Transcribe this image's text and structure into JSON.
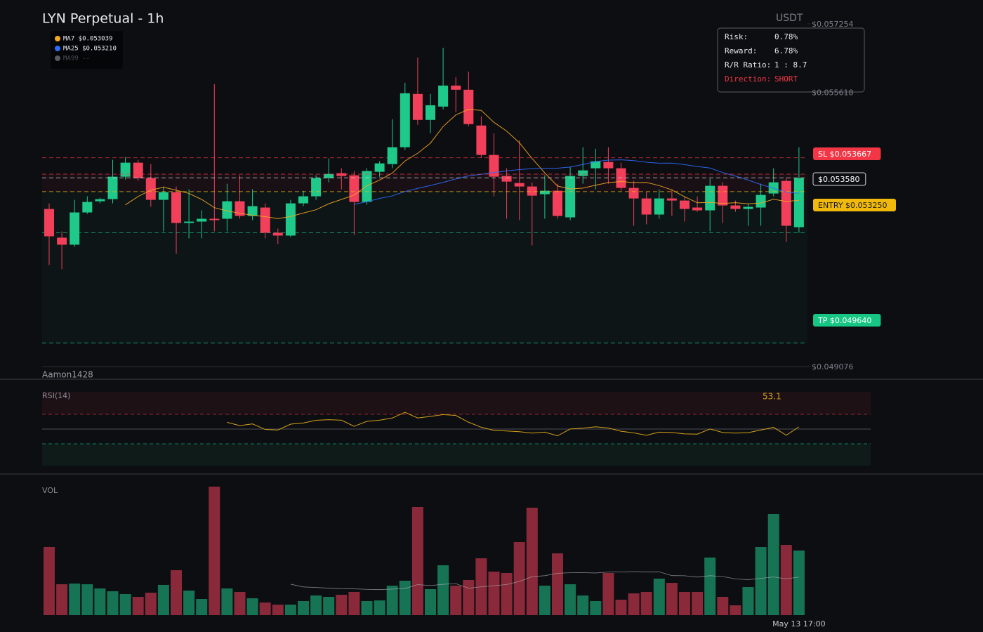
{
  "chart_data": {
    "type": "candlestick",
    "title": "LYN Perpetual - 1h",
    "currency": "USDT",
    "categories": [
      null,
      null,
      null,
      null,
      null,
      null,
      null,
      null,
      null,
      null,
      null,
      null,
      null,
      null,
      null,
      null,
      null,
      null,
      null,
      null,
      null,
      null,
      null,
      null,
      null,
      null,
      null,
      null,
      null,
      null,
      null,
      null,
      null,
      null,
      null,
      null,
      null,
      null,
      null,
      null,
      null,
      null,
      null,
      null,
      null,
      null,
      null,
      null,
      null,
      null,
      null,
      null,
      null,
      null,
      null,
      null,
      null,
      null,
      null,
      "May 13 17:00"
    ],
    "open": [
      0.052837,
      0.052152,
      0.051984,
      0.052754,
      0.053021,
      0.053072,
      0.053607,
      0.053942,
      0.053574,
      0.053055,
      0.053239,
      0.052503,
      0.052536,
      0.052603,
      0.052603,
      0.053021,
      0.05267,
      0.052871,
      0.052269,
      0.052202,
      0.052971,
      0.053139,
      0.053574,
      0.053691,
      0.05364,
      0.053005,
      0.053724,
      0.053908,
      0.05431,
      0.055581,
      0.054962,
      0.05528,
      0.055782,
      0.055682,
      0.054828,
      0.054126,
      0.053624,
      0.053456,
      0.053373,
      0.053189,
      0.053272,
      0.052637,
      0.053624,
      0.053808,
      0.053958,
      0.053808,
      0.053339,
      0.053088,
      0.052704,
      0.053088,
      0.053038,
      0.052871,
      0.052804,
      0.05339,
      0.052921,
      0.052837,
      0.052871,
      0.053206,
      0.053507,
      0.052402
    ],
    "high": [
      0.052971,
      0.052302,
      0.053055,
      0.053139,
      0.053105,
      0.054009,
      0.054075,
      0.054009,
      0.053908,
      0.053373,
      0.053373,
      0.053306,
      0.052804,
      0.055815,
      0.05344,
      0.05364,
      0.053306,
      0.052971,
      0.052369,
      0.053055,
      0.053272,
      0.05364,
      0.054042,
      0.053808,
      0.053741,
      0.053808,
      0.053975,
      0.054979,
      0.055849,
      0.056451,
      0.055581,
      0.056685,
      0.055983,
      0.056117,
      0.055046,
      0.054644,
      0.053808,
      0.054477,
      0.053473,
      0.05364,
      0.05344,
      0.053841,
      0.05431,
      0.054276,
      0.05431,
      0.053942,
      0.053507,
      0.053239,
      0.053306,
      0.053306,
      0.053139,
      0.053139,
      0.053557,
      0.053473,
      0.053038,
      0.052971,
      0.05344,
      0.053808,
      0.053574,
      0.05431
    ],
    "low": [
      0.051499,
      0.051399,
      0.051934,
      0.05272,
      0.052971,
      0.052971,
      0.05354,
      0.053507,
      0.052888,
      0.052302,
      0.051767,
      0.052135,
      0.052135,
      0.052302,
      0.052302,
      0.052603,
      0.05257,
      0.052135,
      0.052001,
      0.052168,
      0.052904,
      0.053055,
      0.053473,
      0.053306,
      0.052218,
      0.052938,
      0.053607,
      0.053808,
      0.054243,
      0.054845,
      0.054644,
      0.055213,
      0.055146,
      0.054812,
      0.054059,
      0.053139,
      0.052603,
      0.05257,
      0.051967,
      0.052603,
      0.052603,
      0.05257,
      0.05344,
      0.053306,
      0.05344,
      0.053272,
      0.052436,
      0.052469,
      0.052603,
      0.05267,
      0.052536,
      0.05277,
      0.052302,
      0.052503,
      0.05277,
      0.052436,
      0.052436,
      0.053139,
      0.052051,
      0.052269
    ],
    "close": [
      0.052185,
      0.051984,
      0.052754,
      0.053005,
      0.053072,
      0.053607,
      0.053942,
      0.053574,
      0.053055,
      0.053239,
      0.052503,
      0.052536,
      0.052603,
      0.05257,
      0.053021,
      0.05267,
      0.052904,
      0.052269,
      0.052202,
      0.052971,
      0.053139,
      0.053574,
      0.053674,
      0.053624,
      0.053005,
      0.053741,
      0.053925,
      0.05431,
      0.055598,
      0.054962,
      0.055313,
      0.055782,
      0.055682,
      0.054862,
      0.054126,
      0.053607,
      0.05349,
      0.053373,
      0.053155,
      0.053272,
      0.05267,
      0.053624,
      0.053758,
      0.053975,
      0.053808,
      0.053339,
      0.053088,
      0.052704,
      0.053088,
      0.053038,
      0.052837,
      0.052804,
      0.05339,
      0.052921,
      0.052837,
      0.052888,
      0.053172,
      0.053473,
      0.052436,
      0.053574
    ],
    "up_color": "#1fc98a",
    "down_color": "#f23f5a",
    "ylim": [
      0.049076,
      0.057254
    ],
    "yticks": [
      {
        "value": 0.057254,
        "label": "$0.057254"
      },
      {
        "value": 0.055618,
        "label": "$0.055618"
      },
      {
        "value": 0.049076,
        "label": "$0.049076"
      }
    ],
    "legend": [
      {
        "label": "MA7 $0.053039",
        "color": "#f5a623"
      },
      {
        "label": "MA25 $0.053210",
        "color": "#2f6bff"
      },
      {
        "label": "MA99 --",
        "color": "#555a63"
      }
    ],
    "levels": [
      {
        "value": 0.053667,
        "label": "SL $0.053667",
        "color": "#f23645"
      },
      {
        "value": 0.05358,
        "label": "$0.053580",
        "color": "#d0d3da"
      },
      {
        "value": 0.05325,
        "label": "ENTRY $0.053250",
        "color": "#f0b90b"
      },
      {
        "value": 0.04964,
        "label": "TP $0.049640",
        "color": "#16c784"
      }
    ],
    "guide_lines": [
      {
        "value": 0.054059,
        "color": "#f23645"
      },
      {
        "value": 0.052269,
        "color": "#16c784"
      }
    ],
    "watermark": "Aamon1428",
    "risk_panel": {
      "rows": [
        [
          "Risk:",
          "0.78%"
        ],
        [
          "Reward:",
          "6.78%"
        ],
        [
          "R/R Ratio:",
          "1 : 8.7"
        ],
        [
          "Direction:",
          "SHORT"
        ]
      ]
    },
    "rsi": {
      "label": "RSI(14)",
      "value": 53.1,
      "color": "#d4a017"
    },
    "volume": {
      "label": "VOL",
      "ylim": [
        0,
        186
      ],
      "values": [
        97,
        44,
        45,
        44,
        38,
        34,
        30,
        26,
        32,
        43,
        64,
        35,
        23,
        183,
        38,
        33,
        24,
        18,
        15,
        15,
        20,
        28,
        26,
        29,
        33,
        20,
        21,
        42,
        49,
        154,
        37,
        71,
        42,
        50,
        81,
        62,
        60,
        104,
        153,
        42,
        88,
        44,
        28,
        20,
        60,
        22,
        31,
        33,
        52,
        46,
        33,
        33,
        82,
        26,
        14,
        40,
        97,
        144,
        100,
        92
      ]
    }
  }
}
